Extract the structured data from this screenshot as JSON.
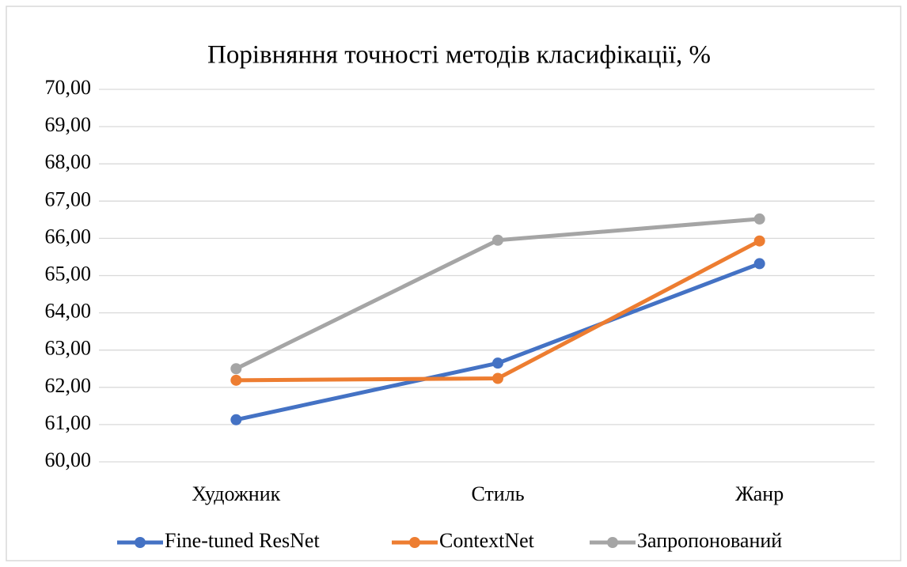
{
  "chart_data": {
    "type": "line",
    "title": "Порівняння точності методів класифікації, %",
    "categories": [
      "Художник",
      "Стиль",
      "Жанр"
    ],
    "series": [
      {
        "name": "Fine-tuned ResNet",
        "color": "#4472c4",
        "values": [
          61.13,
          62.65,
          65.32
        ]
      },
      {
        "name": "ContextNet",
        "color": "#ed7d31",
        "values": [
          62.19,
          62.24,
          65.93
        ]
      },
      {
        "name": "Запропонований",
        "color": "#a5a5a5",
        "values": [
          62.5,
          65.95,
          66.52
        ]
      }
    ],
    "ylim": [
      60,
      70
    ],
    "yticks": [
      {
        "value": 60,
        "label": "60,00"
      },
      {
        "value": 61,
        "label": "61,00"
      },
      {
        "value": 62,
        "label": "62,00"
      },
      {
        "value": 63,
        "label": "63,00"
      },
      {
        "value": 64,
        "label": "64,00"
      },
      {
        "value": 65,
        "label": "65,00"
      },
      {
        "value": 66,
        "label": "66,00"
      },
      {
        "value": 67,
        "label": "67,00"
      },
      {
        "value": 68,
        "label": "68,00"
      },
      {
        "value": 69,
        "label": "69,00"
      },
      {
        "value": 70,
        "label": "70,00"
      }
    ],
    "grid": true,
    "legend": "bottom"
  }
}
